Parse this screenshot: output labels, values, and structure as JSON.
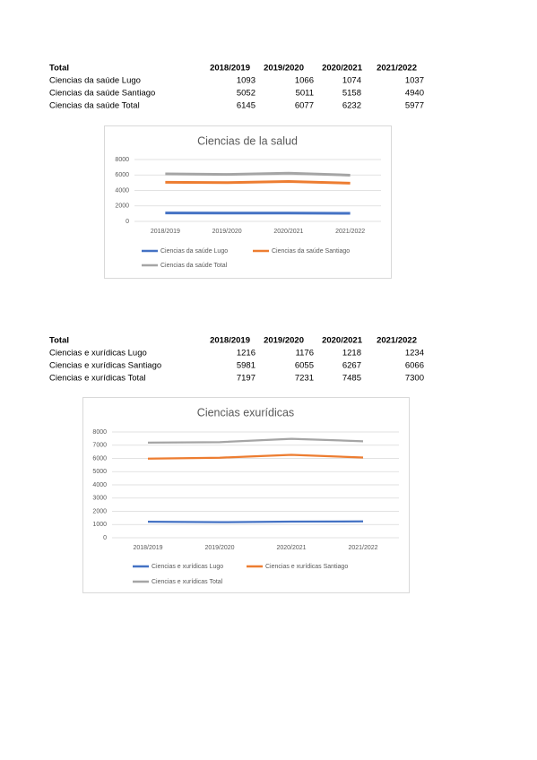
{
  "tables": [
    {
      "header": [
        "Total",
        "2018/2019",
        "2019/2020",
        "2020/2021",
        "2021/2022"
      ],
      "rows": [
        [
          "Ciencias da saúde Lugo",
          1093,
          1066,
          1074,
          1037
        ],
        [
          "Ciencias da saúde Santiago",
          5052,
          5011,
          5158,
          4940
        ],
        [
          "Ciencias da saúde Total",
          6145,
          6077,
          6232,
          5977
        ]
      ]
    },
    {
      "header": [
        "Total",
        "2018/2019",
        "2019/2020",
        "2020/2021",
        "2021/2022"
      ],
      "rows": [
        [
          "Ciencias e xurídicas Lugo",
          1216,
          1176,
          1218,
          1234
        ],
        [
          "Ciencias e xurídicas Santiago",
          5981,
          6055,
          6267,
          6066
        ],
        [
          "Ciencias e xurídicas Total",
          7197,
          7231,
          7485,
          7300
        ]
      ]
    }
  ],
  "chart_data": [
    {
      "type": "line",
      "title": "Ciencias de la salud",
      "categories": [
        "2018/2019",
        "2019/2020",
        "2020/2021",
        "2021/2022"
      ],
      "series": [
        {
          "name": "Ciencias da saúde Lugo",
          "color": "#4472c4",
          "values": [
            1093,
            1066,
            1074,
            1037
          ]
        },
        {
          "name": "Ciencias da saúde Santiago",
          "color": "#ed7d31",
          "values": [
            5052,
            5011,
            5158,
            4940
          ]
        },
        {
          "name": "Ciencias da saúde Total",
          "color": "#a5a5a5",
          "values": [
            6145,
            6077,
            6232,
            5977
          ]
        }
      ],
      "ylim": [
        0,
        8000
      ],
      "yticks": [
        0,
        2000,
        4000,
        6000,
        8000
      ],
      "grid": true,
      "legend": "bottom"
    },
    {
      "type": "line",
      "title": "Ciencias exurídicas",
      "categories": [
        "2018/2019",
        "2019/2020",
        "2020/2021",
        "2021/2022"
      ],
      "series": [
        {
          "name": "Ciencias e xurídicas Lugo",
          "color": "#4472c4",
          "values": [
            1216,
            1176,
            1218,
            1234
          ]
        },
        {
          "name": "Ciencias e xurídicas Santiago",
          "color": "#ed7d31",
          "values": [
            5981,
            6055,
            6267,
            6066
          ]
        },
        {
          "name": "Ciencias e xurídicas Total",
          "color": "#a5a5a5",
          "values": [
            7197,
            7231,
            7485,
            7300
          ]
        }
      ],
      "ylim": [
        0,
        8000
      ],
      "yticks": [
        0,
        1000,
        2000,
        3000,
        4000,
        5000,
        6000,
        7000,
        8000
      ],
      "grid": true,
      "legend": "bottom"
    }
  ]
}
